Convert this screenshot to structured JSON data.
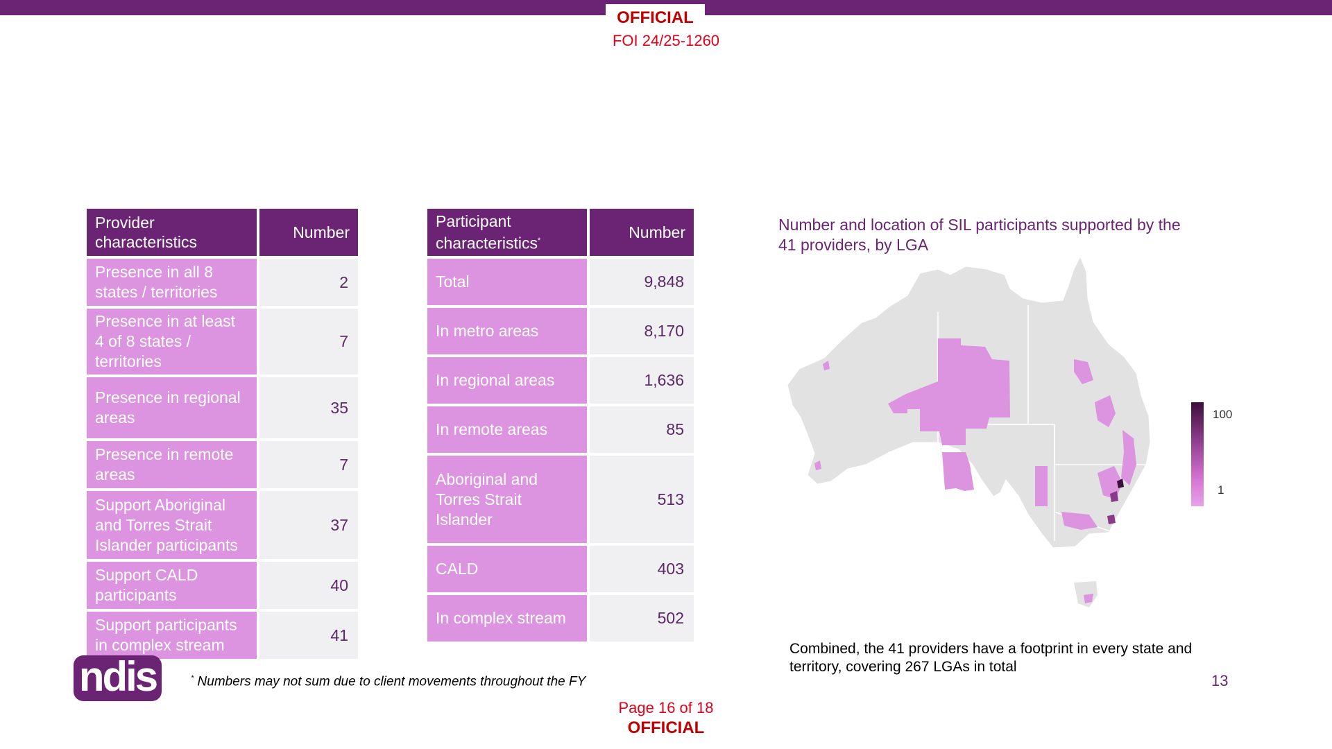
{
  "header": {
    "classification": "OFFICIAL",
    "foi_ref": "FOI 24/25-1260"
  },
  "provider_table": {
    "col1": "Provider characteristics",
    "col2": "Number",
    "rows": [
      {
        "label": "Presence in all 8 states / territories",
        "value": "2"
      },
      {
        "label": "Presence in at least 4 of 8 states / territories",
        "value": "7"
      },
      {
        "label": "Presence in regional areas",
        "value": "35"
      },
      {
        "label": "Presence in remote areas",
        "value": "7"
      },
      {
        "label": "Support Aboriginal and Torres Strait Islander participants",
        "value": "37"
      },
      {
        "label": "Support CALD participants",
        "value": "40"
      },
      {
        "label": "Support participants in complex stream",
        "value": "41"
      }
    ]
  },
  "participant_table": {
    "col1": "Participant characteristics",
    "col1_mark": "*",
    "col2": "Number",
    "rows": [
      {
        "label": "Total",
        "value": "9,848"
      },
      {
        "label": "In metro areas",
        "value": "8,170"
      },
      {
        "label": "In regional areas",
        "value": "1,636"
      },
      {
        "label": "In remote areas",
        "value": "85"
      },
      {
        "label": "Aboriginal and Torres Strait Islander",
        "value": "513"
      },
      {
        "label": "CALD",
        "value": "403"
      },
      {
        "label": "In complex stream",
        "value": "502"
      }
    ]
  },
  "map": {
    "title": "Number and location of SIL participants supported by the 41 providers, by LGA",
    "legend_high": "100",
    "legend_low": "1",
    "base_color": "#e2e2e2",
    "highlight_color": "#dc93e0",
    "dark_color": "#3d0f3c"
  },
  "summary": "Combined, the 41 providers have a footprint in every state and territory, covering 267 LGAs in total",
  "slide_number": "13",
  "logo_text": "ndis",
  "footnote_mark": "*",
  "footnote": " Numbers may not sum due to client movements throughout the FY",
  "footer": {
    "page": "Page 16 of 18",
    "classification": "OFFICIAL"
  }
}
